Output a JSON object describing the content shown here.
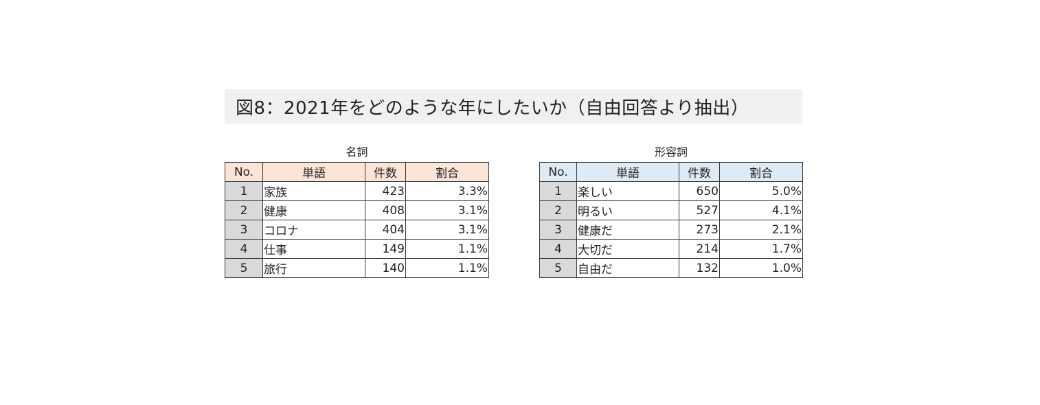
{
  "title": "図8：2021年をどのような年にしたいか（自由回答より抽出）",
  "tables": {
    "noun": {
      "caption": "名詞",
      "headers": [
        "No.",
        "単語",
        "件数",
        "割合"
      ],
      "rows": [
        {
          "no": "1",
          "word": "家族",
          "count": "423",
          "ratio": "3.3%"
        },
        {
          "no": "2",
          "word": "健康",
          "count": "408",
          "ratio": "3.1%"
        },
        {
          "no": "3",
          "word": "コロナ",
          "count": "404",
          "ratio": "3.1%"
        },
        {
          "no": "4",
          "word": "仕事",
          "count": "149",
          "ratio": "1.1%"
        },
        {
          "no": "5",
          "word": "旅行",
          "count": "140",
          "ratio": "1.1%"
        }
      ],
      "header_color": "#fbe5d6"
    },
    "adjective": {
      "caption": "形容詞",
      "headers": [
        "No.",
        "単語",
        "件数",
        "割合"
      ],
      "rows": [
        {
          "no": "1",
          "word": "楽しい",
          "count": "650",
          "ratio": "5.0%"
        },
        {
          "no": "2",
          "word": "明るい",
          "count": "527",
          "ratio": "4.1%"
        },
        {
          "no": "3",
          "word": "健康だ",
          "count": "273",
          "ratio": "2.1%"
        },
        {
          "no": "4",
          "word": "大切だ",
          "count": "214",
          "ratio": "1.7%"
        },
        {
          "no": "5",
          "word": "自由だ",
          "count": "132",
          "ratio": "1.0%"
        }
      ],
      "header_color": "#ddebf7"
    }
  }
}
